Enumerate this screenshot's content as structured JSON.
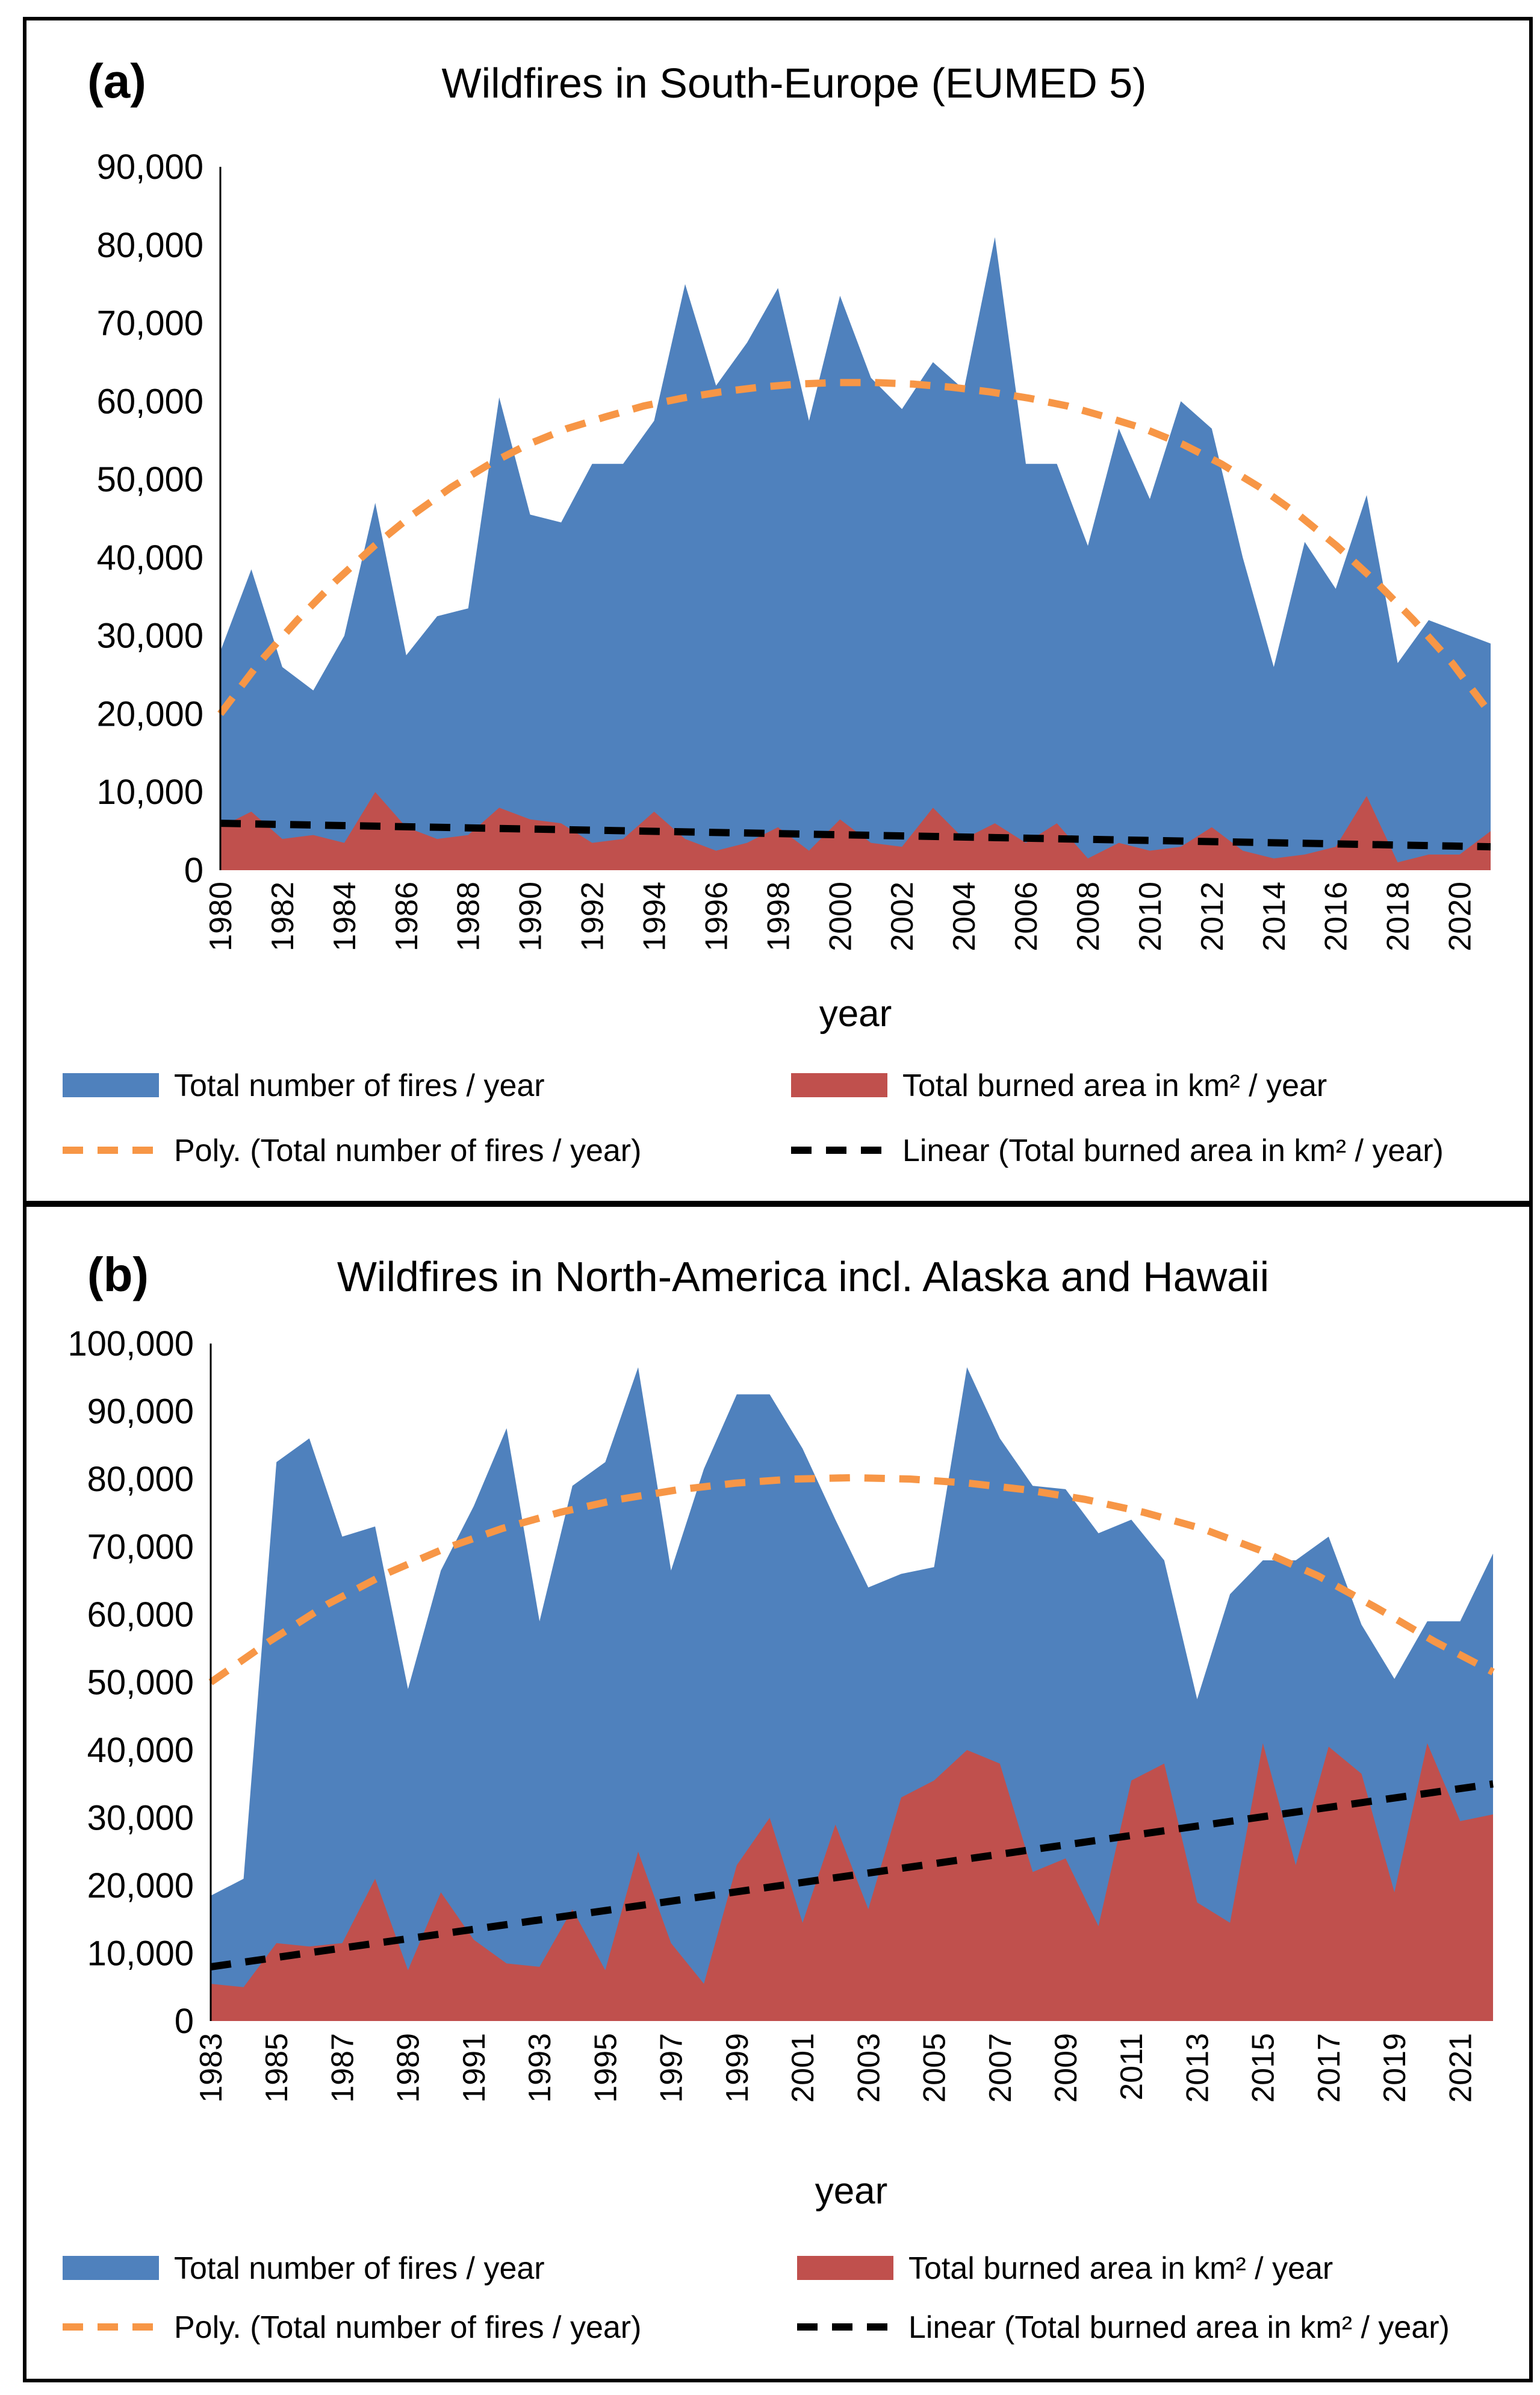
{
  "chart_data": [
    {
      "type": "area",
      "panel_label": "(a)",
      "title": "Wildfires in South-Europe (EUMED 5)",
      "xlabel": "year",
      "ylabel": "",
      "ylim": [
        0,
        90000
      ],
      "yticks": [
        "0",
        "10,000",
        "20,000",
        "30,000",
        "40,000",
        "50,000",
        "60,000",
        "70,000",
        "80,000",
        "90,000"
      ],
      "xtick_labels": [
        "1980",
        "1982",
        "1984",
        "1986",
        "1988",
        "1990",
        "1992",
        "1994",
        "1996",
        "1998",
        "2000",
        "2002",
        "2004",
        "2006",
        "2008",
        "2010",
        "2012",
        "2014",
        "2016",
        "2018",
        "2020"
      ],
      "x": [
        1980,
        1981,
        1982,
        1983,
        1984,
        1985,
        1986,
        1987,
        1988,
        1989,
        1990,
        1991,
        1992,
        1993,
        1994,
        1995,
        1996,
        1997,
        1998,
        1999,
        2000,
        2001,
        2002,
        2003,
        2004,
        2005,
        2006,
        2007,
        2008,
        2009,
        2010,
        2011,
        2012,
        2013,
        2014,
        2015,
        2016,
        2017,
        2018,
        2019,
        2020,
        2021
      ],
      "series": [
        {
          "name": "Total number of fires / year",
          "color": "#4f81bd",
          "values": [
            28000,
            38500,
            26000,
            23000,
            30000,
            47000,
            27500,
            32500,
            33500,
            60500,
            45500,
            44500,
            52000,
            52000,
            57500,
            75000,
            62000,
            67500,
            74500,
            57500,
            73500,
            63000,
            59000,
            65000,
            61500,
            81000,
            52000,
            52000,
            41500,
            56500,
            47500,
            60000,
            56500,
            40000,
            26000,
            42000,
            36000,
            48000,
            26500,
            32000,
            30500,
            29000
          ]
        },
        {
          "name": "Total burned area in km² / year",
          "color": "#c0504d",
          "values": [
            5500,
            7500,
            4000,
            4500,
            3500,
            10000,
            5500,
            4000,
            4500,
            8000,
            6500,
            6000,
            3500,
            4000,
            7500,
            4000,
            2500,
            3500,
            5500,
            2500,
            6500,
            3500,
            3000,
            8000,
            4000,
            6000,
            3500,
            6000,
            1500,
            3500,
            2500,
            3000,
            5500,
            2500,
            1500,
            2000,
            3000,
            9500,
            1000,
            2000,
            2000,
            5000
          ]
        }
      ],
      "trendlines": [
        {
          "name": "Poly. (Total number of fires / year)",
          "color": "#f79646",
          "style": "dashed",
          "type": "polynomial",
          "values": [
            20000,
            26500,
            32000,
            37000,
            41500,
            45500,
            49000,
            52000,
            54500,
            56500,
            58000,
            59400,
            60400,
            61200,
            61800,
            62200,
            62400,
            62400,
            62200,
            61800,
            61200,
            60400,
            59400,
            58000,
            56500,
            54500,
            52000,
            49000,
            45500,
            41500,
            37000,
            32000,
            26500,
            20000
          ]
        },
        {
          "name": "Linear (Total burned area in km² / year)",
          "color": "#000000",
          "style": "dashed",
          "type": "linear",
          "start": [
            1980,
            6000
          ],
          "end": [
            2021,
            3000
          ]
        }
      ],
      "legend": "bottom"
    },
    {
      "type": "area",
      "panel_label": "(b)",
      "title": "Wildfires in North-America incl. Alaska and Hawaii",
      "xlabel": "year",
      "ylabel": "",
      "ylim": [
        0,
        100000
      ],
      "yticks": [
        "0",
        "10,000",
        "20,000",
        "30,000",
        "40,000",
        "50,000",
        "60,000",
        "70,000",
        "80,000",
        "90,000",
        "100,000"
      ],
      "xtick_labels": [
        "1983",
        "1985",
        "1987",
        "1989",
        "1991",
        "1993",
        "1995",
        "1997",
        "1999",
        "2001",
        "2003",
        "2005",
        "2007",
        "2009",
        "2011",
        "2013",
        "2015",
        "2017",
        "2019",
        "2021"
      ],
      "x": [
        1983,
        1984,
        1985,
        1986,
        1987,
        1988,
        1989,
        1990,
        1991,
        1992,
        1993,
        1994,
        1995,
        1996,
        1997,
        1998,
        1999,
        2000,
        2001,
        2002,
        2003,
        2004,
        2005,
        2006,
        2007,
        2008,
        2009,
        2010,
        2011,
        2012,
        2013,
        2014,
        2015,
        2016,
        2017,
        2018,
        2019,
        2020,
        2021,
        2022
      ],
      "series": [
        {
          "name": "Total number of fires / year",
          "color": "#4f81bd",
          "values": [
            18500,
            21000,
            82500,
            86000,
            71500,
            73000,
            49000,
            66500,
            76000,
            87500,
            59000,
            79000,
            82500,
            96500,
            66500,
            81500,
            92500,
            92500,
            84500,
            74000,
            64000,
            66000,
            67000,
            96500,
            86000,
            79000,
            78500,
            72000,
            74000,
            68000,
            47500,
            63000,
            68000,
            68000,
            71500,
            58500,
            50500,
            59000,
            59000,
            69000
          ]
        },
        {
          "name": "Total burned area in km² / year",
          "color": "#c0504d",
          "values": [
            5500,
            5000,
            11500,
            11000,
            11500,
            21000,
            7500,
            19000,
            12000,
            8500,
            8000,
            16500,
            7500,
            25000,
            11500,
            5500,
            23000,
            30000,
            14500,
            29000,
            16500,
            33000,
            35500,
            40000,
            38000,
            22000,
            24000,
            14000,
            35500,
            38000,
            17500,
            14500,
            41000,
            23000,
            40500,
            36500,
            19000,
            41000,
            29500,
            30500
          ]
        }
      ],
      "trendlines": [
        {
          "name": "Poly. (Total number of fires / year)",
          "color": "#f79646",
          "style": "dashed",
          "type": "polynomial",
          "values": [
            50000,
            56000,
            61500,
            66000,
            69700,
            72700,
            75100,
            77000,
            78400,
            79400,
            80000,
            80200,
            80000,
            79400,
            78400,
            77000,
            75100,
            72700,
            69500,
            65700,
            61000,
            56000,
            51500
          ]
        },
        {
          "name": "Linear (Total burned area in km² / year)",
          "color": "#000000",
          "style": "dashed",
          "type": "linear",
          "start": [
            1983,
            8000
          ],
          "end": [
            2022,
            35000
          ]
        }
      ],
      "legend": "bottom"
    }
  ]
}
